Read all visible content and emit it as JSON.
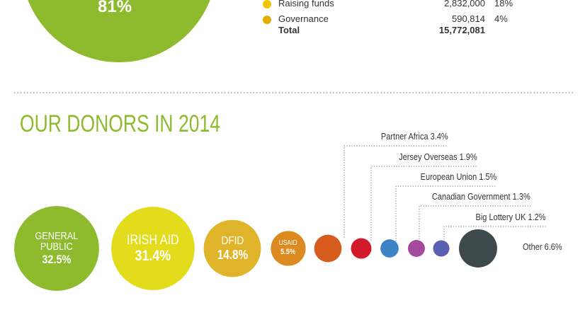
{
  "top": {
    "big_percent": "81%",
    "legend": [
      {
        "name": "Raising funds",
        "amount": "2,832,000",
        "percent": "18%",
        "color": "#f2c500"
      },
      {
        "name": "Governance",
        "amount": "590,814",
        "percent": "4%",
        "color": "#e3ae00"
      }
    ],
    "total": {
      "name": "Total",
      "amount": "15,772,081"
    }
  },
  "chart_data": {
    "type": "bubble",
    "title": "OUR DONORS IN 2014",
    "categories": [
      "GENERAL PUBLIC",
      "IRISH AID",
      "DFID",
      "USAID",
      "Partner Africa",
      "Jersey Overseas",
      "European Union",
      "Canadian Government",
      "Big Lottery UK",
      "Other"
    ],
    "values": [
      32.5,
      31.4,
      14.8,
      5.5,
      3.4,
      1.9,
      1.5,
      1.3,
      1.2,
      6.6
    ],
    "value_labels": [
      "32.5%",
      "31.4%",
      "14.8%",
      "5.5%",
      "3.4%",
      "1.9%",
      "1.5%",
      "1.3%",
      "1.2%",
      "6.6%"
    ],
    "colors": [
      "#8dbb2d",
      "#e2dc1c",
      "#e0b42a",
      "#dc8a1f",
      "#d85b1e",
      "#d31a2b",
      "#3c84c6",
      "#a4499b",
      "#5b5fb4",
      "#3e494e"
    ]
  }
}
